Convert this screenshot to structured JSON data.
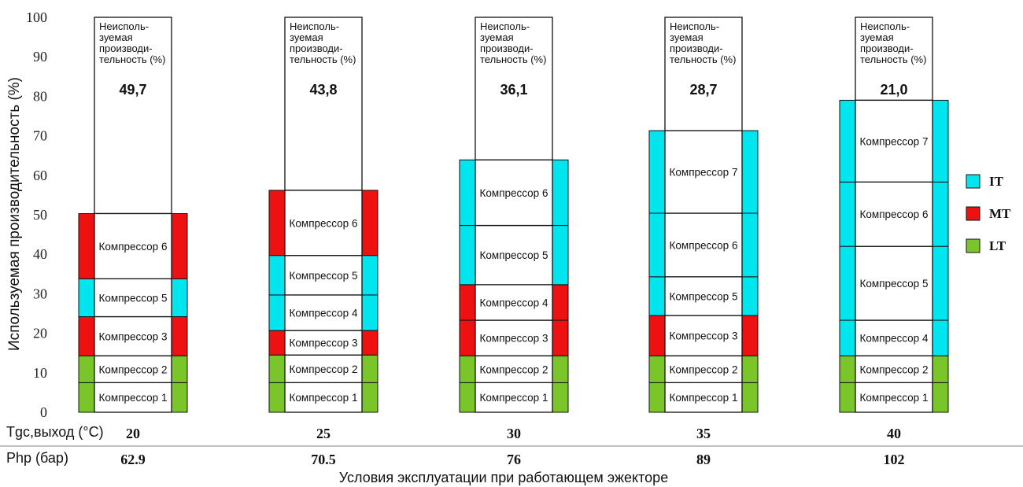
{
  "chart_data": {
    "type": "bar",
    "ylabel": "Используемая производительность (%)",
    "xlabel": "Условия эксплуатации при работающем эжекторе",
    "ylim": [
      0,
      100
    ],
    "yticks": [
      0,
      10,
      20,
      30,
      40,
      50,
      60,
      70,
      80,
      90,
      100
    ],
    "grid": false,
    "legend_position": "right",
    "legend": [
      {
        "name": "IT",
        "color": "#00e5ee"
      },
      {
        "name": "MT",
        "color": "#ee1111"
      },
      {
        "name": "LT",
        "color": "#7ac62a"
      }
    ],
    "unused_label_lines": [
      "Неисполь-",
      "зуемая",
      "производи-",
      "тельность (%)"
    ],
    "row_labels": [
      "Tgc,выход (°C)",
      "Php (бар)"
    ],
    "groups": [
      {
        "tgc": "20",
        "php": "62.9",
        "unused": "49,7",
        "segments": [
          {
            "label": "Компрессор 1",
            "from": 0,
            "to": 7.5,
            "type": "LT"
          },
          {
            "label": "Компрессор 2",
            "from": 7.5,
            "to": 14.3,
            "type": "LT"
          },
          {
            "label": "Компрессор 3",
            "from": 14.3,
            "to": 24.2,
            "type": "MT"
          },
          {
            "label": "Компрессор 5",
            "from": 24.2,
            "to": 33.8,
            "type": "IT"
          },
          {
            "label": "Компрессор 6",
            "from": 33.8,
            "to": 50.3,
            "type": "MT"
          }
        ]
      },
      {
        "tgc": "25",
        "php": "70.5",
        "unused": "43,8",
        "segments": [
          {
            "label": "Компрессор 1",
            "from": 0,
            "to": 7.5,
            "type": "LT"
          },
          {
            "label": "Компрессор 2",
            "from": 7.5,
            "to": 14.5,
            "type": "LT"
          },
          {
            "label": "Компрессор 3",
            "from": 14.5,
            "to": 20.7,
            "type": "MT"
          },
          {
            "label": "Компрессор 4",
            "from": 20.7,
            "to": 29.7,
            "type": "IT"
          },
          {
            "label": "Компрессор 5",
            "from": 29.7,
            "to": 39.7,
            "type": "IT"
          },
          {
            "label": "Компрессор 6",
            "from": 39.7,
            "to": 56.2,
            "type": "MT"
          }
        ]
      },
      {
        "tgc": "30",
        "php": "76",
        "unused": "36,1",
        "segments": [
          {
            "label": "Компрессор 1",
            "from": 0,
            "to": 7.5,
            "type": "LT"
          },
          {
            "label": "Компрессор 2",
            "from": 7.5,
            "to": 14.3,
            "type": "LT"
          },
          {
            "label": "Компрессор 3",
            "from": 14.3,
            "to": 23.3,
            "type": "MT"
          },
          {
            "label": "Компрессор 4",
            "from": 23.3,
            "to": 32.3,
            "type": "MT"
          },
          {
            "label": "Компрессор 5",
            "from": 32.3,
            "to": 47.3,
            "type": "IT"
          },
          {
            "label": "Компрессор 6",
            "from": 47.3,
            "to": 63.9,
            "type": "IT"
          }
        ]
      },
      {
        "tgc": "35",
        "php": "89",
        "unused": "28,7",
        "segments": [
          {
            "label": "Компрессор 1",
            "from": 0,
            "to": 7.5,
            "type": "LT"
          },
          {
            "label": "Компрессор 2",
            "from": 7.5,
            "to": 14.3,
            "type": "LT"
          },
          {
            "label": "Компрессор 3",
            "from": 14.3,
            "to": 24.5,
            "type": "MT"
          },
          {
            "label": "Компрессор 5",
            "from": 24.5,
            "to": 34.3,
            "type": "IT"
          },
          {
            "label": "Компрессор 6",
            "from": 34.3,
            "to": 50.4,
            "type": "IT"
          },
          {
            "label": "Компрессор 7",
            "from": 50.4,
            "to": 71.3,
            "type": "IT"
          }
        ]
      },
      {
        "tgc": "40",
        "php": "102",
        "unused": "21,0",
        "segments": [
          {
            "label": "Компрессор 1",
            "from": 0,
            "to": 7.5,
            "type": "LT"
          },
          {
            "label": "Компрессор 2",
            "from": 7.5,
            "to": 14.3,
            "type": "LT"
          },
          {
            "label": "Компрессор 4",
            "from": 14.3,
            "to": 23.3,
            "type": "IT"
          },
          {
            "label": "Компрессор 5",
            "from": 23.3,
            "to": 42.0,
            "type": "IT"
          },
          {
            "label": "Компрессор 6",
            "from": 42.0,
            "to": 58.3,
            "type": "IT"
          },
          {
            "label": "Компрессор 7",
            "from": 58.3,
            "to": 79.0,
            "type": "IT"
          }
        ]
      }
    ]
  }
}
